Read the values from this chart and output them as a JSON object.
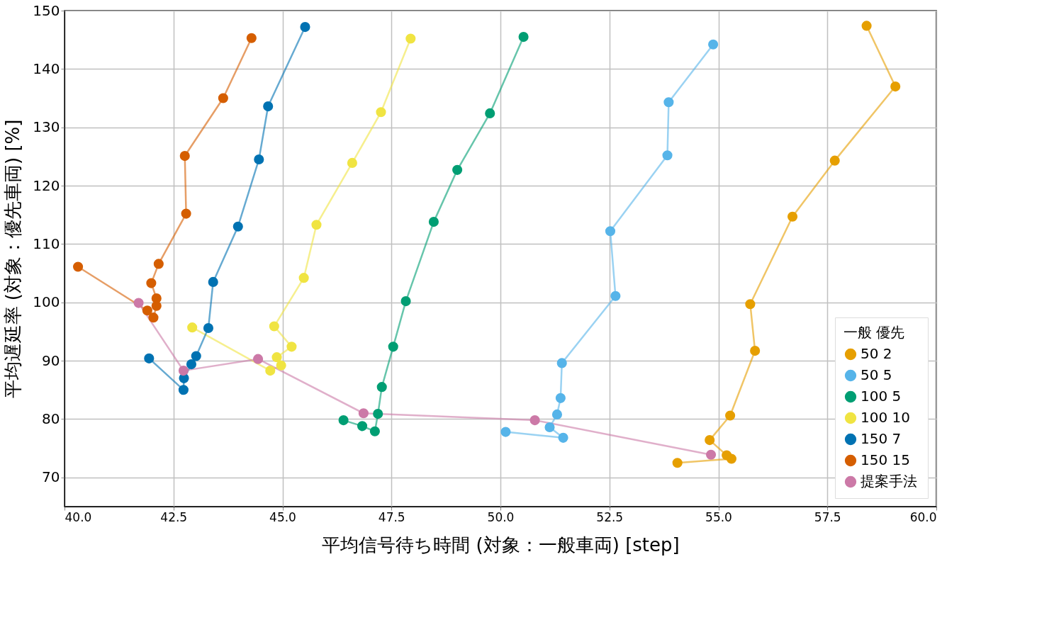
{
  "chart_data": {
    "type": "line",
    "xlabel": "平均信号待ち時間 (対象：一般車両) [step]",
    "ylabel": "平均遅延率 (対象：優先車両) [%]",
    "legend_title": "一般  優先",
    "legend": "bottom right",
    "grid": true,
    "marker": "circle",
    "line_style": "solid",
    "xlim": [
      40,
      60
    ],
    "ylim": [
      65,
      150
    ],
    "xticks": [
      {
        "value": 40,
        "label": "40.0"
      },
      42.5,
      {
        "value": 45,
        "label": "45.0"
      },
      47.5,
      {
        "value": 50,
        "label": "50.0"
      },
      52.5,
      {
        "value": 55,
        "label": "55.0"
      },
      57.5,
      {
        "value": 60,
        "label": "60.0"
      }
    ],
    "yticks": [
      70,
      80,
      90,
      100,
      110,
      120,
      130,
      140,
      150
    ],
    "series": [
      {
        "name": "50    2",
        "color": "#e69f00",
        "x": [
          58.4,
          59.06,
          57.67,
          56.7,
          55.73,
          55.84,
          55.27,
          54.8,
          55.19,
          55.3,
          54.06
        ],
        "values": [
          147.4,
          137.0,
          124.3,
          114.7,
          99.7,
          91.7,
          80.6,
          76.4,
          73.8,
          73.2,
          72.5
        ]
      },
      {
        "name": "50    5",
        "color": "#56b4e9",
        "x": [
          54.88,
          53.86,
          53.83,
          52.52,
          52.64,
          51.41,
          51.38,
          51.3,
          51.13,
          51.44,
          50.12
        ],
        "values": [
          144.2,
          134.3,
          125.2,
          112.2,
          101.1,
          89.6,
          83.6,
          80.8,
          78.6,
          76.8,
          77.8
        ]
      },
      {
        "name": "100   5",
        "color": "#009e73",
        "x": [
          50.53,
          49.76,
          49.01,
          48.47,
          47.83,
          47.54,
          47.28,
          47.19,
          47.12,
          46.83,
          46.4
        ],
        "values": [
          145.5,
          132.4,
          122.7,
          113.8,
          100.2,
          92.4,
          85.5,
          80.9,
          77.9,
          78.8,
          79.8
        ]
      },
      {
        "name": "100   10",
        "color": "#f0e442",
        "x": [
          47.94,
          47.26,
          46.6,
          45.78,
          45.49,
          44.81,
          45.21,
          44.87,
          44.97,
          44.72,
          42.93
        ],
        "values": [
          145.2,
          132.6,
          123.9,
          113.3,
          104.2,
          95.9,
          92.4,
          90.6,
          89.2,
          88.3,
          95.7
        ]
      },
      {
        "name": "150   7",
        "color": "#0072b2",
        "x": [
          45.52,
          44.67,
          44.46,
          43.98,
          43.41,
          43.3,
          43.02,
          42.91,
          42.74,
          42.73,
          41.94
        ],
        "values": [
          147.2,
          133.6,
          124.5,
          113.0,
          103.5,
          95.6,
          90.8,
          89.4,
          87.0,
          85.0,
          90.4
        ]
      },
      {
        "name": "150   15",
        "color": "#d55e00",
        "x": [
          44.29,
          43.64,
          42.76,
          42.79,
          42.16,
          41.99,
          42.11,
          42.11,
          42.04,
          41.9,
          40.31
        ],
        "values": [
          145.3,
          135.0,
          125.1,
          115.2,
          106.6,
          103.3,
          100.7,
          99.4,
          97.4,
          98.6,
          106.1
        ]
      },
      {
        "name": "提案手法",
        "color": "#cc79a7",
        "x": [
          41.7,
          42.73,
          44.44,
          46.86,
          50.79,
          54.83
        ],
        "values": [
          99.9,
          88.3,
          90.3,
          81.0,
          79.8,
          73.9
        ]
      }
    ]
  }
}
